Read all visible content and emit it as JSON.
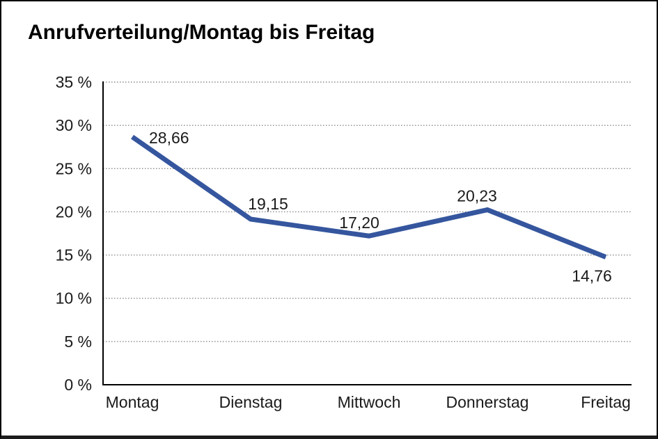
{
  "window": {
    "background": "#ffffff",
    "border_color": "#000000"
  },
  "chart_data": {
    "type": "line",
    "title": "Anrufverteilung/Montag bis Freitag",
    "categories": [
      "Montag",
      "Dienstag",
      "Mittwoch",
      "Donnerstag",
      "Freitag"
    ],
    "series": [
      {
        "values": [
          28.66,
          19.15,
          17.2,
          20.23,
          14.76
        ],
        "value_labels": [
          "28,66",
          "19,15",
          "17,20",
          "20,23",
          "14,76"
        ],
        "color": "#35569E"
      }
    ],
    "xlabel": "",
    "ylabel": "",
    "ylim": [
      0,
      35
    ],
    "ytick_values": [
      0,
      5,
      10,
      15,
      20,
      25,
      30,
      35
    ],
    "ytick_labels": [
      "0 %",
      "5 %",
      "10 %",
      "15 %",
      "20 %",
      "25 %",
      "30 %",
      "35 %"
    ],
    "grid": "horizontal-dotted",
    "legend": "none",
    "gridline_color": "#8a8a8a",
    "axis_color": "#000000",
    "text_color": "#1a1a1a"
  }
}
